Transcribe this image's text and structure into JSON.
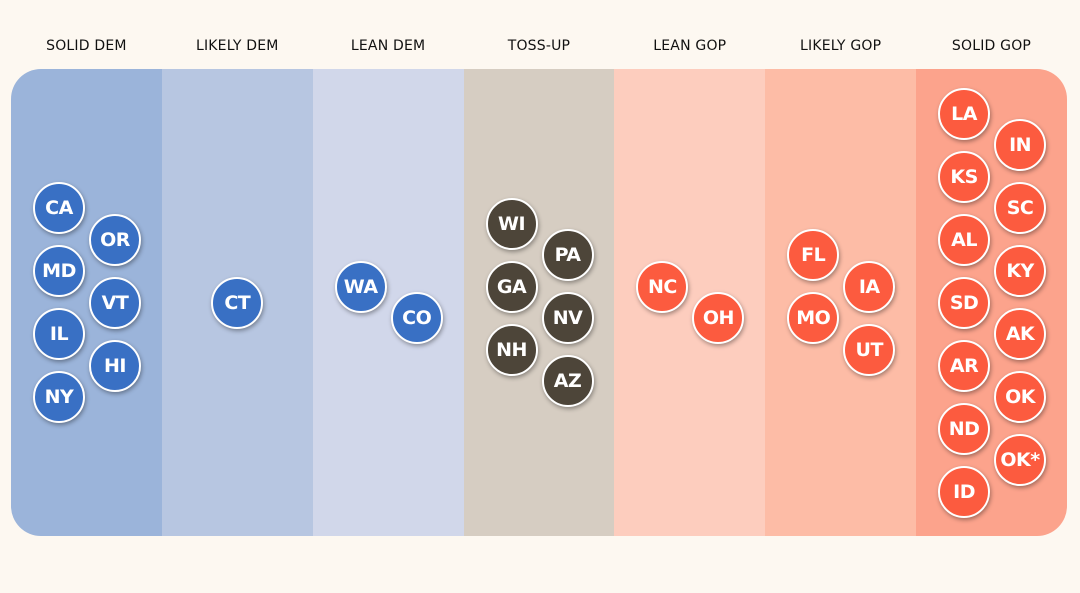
{
  "categories": [
    {
      "label": "SOLID DEM",
      "color": "#9bb4da",
      "party": "dem",
      "states": [
        "CA",
        "OR",
        "MD",
        "VT",
        "IL",
        "HI",
        "NY"
      ]
    },
    {
      "label": "LIKELY DEM",
      "color": "#b7c6e1",
      "party": "dem",
      "states": [
        "CT"
      ]
    },
    {
      "label": "LEAN DEM",
      "color": "#d1d7ea",
      "party": "dem",
      "states": [
        "WA",
        "CO"
      ]
    },
    {
      "label": "TOSS-UP",
      "color": "#d6cdc2",
      "party": "toss",
      "states": [
        "WI",
        "PA",
        "GA",
        "NV",
        "NH",
        "AZ"
      ]
    },
    {
      "label": "LEAN GOP",
      "color": "#fdcdbe",
      "party": "gop",
      "states": [
        "NC",
        "OH"
      ]
    },
    {
      "label": "LIKELY GOP",
      "color": "#fdbca6",
      "party": "gop",
      "states": [
        "FL",
        "IA",
        "MO",
        "UT"
      ]
    },
    {
      "label": "SOLID GOP",
      "color": "#fca38c",
      "party": "gop",
      "states": [
        "LA",
        "IN",
        "KS",
        "SC",
        "AL",
        "KY",
        "SD",
        "AK",
        "AR",
        "OK",
        "ND",
        "OK*",
        "ID"
      ]
    }
  ],
  "colors": {
    "dem": "#3970c4",
    "toss": "#4d4539",
    "gop": "#fc5b3f",
    "background": "#fdf8f1"
  }
}
